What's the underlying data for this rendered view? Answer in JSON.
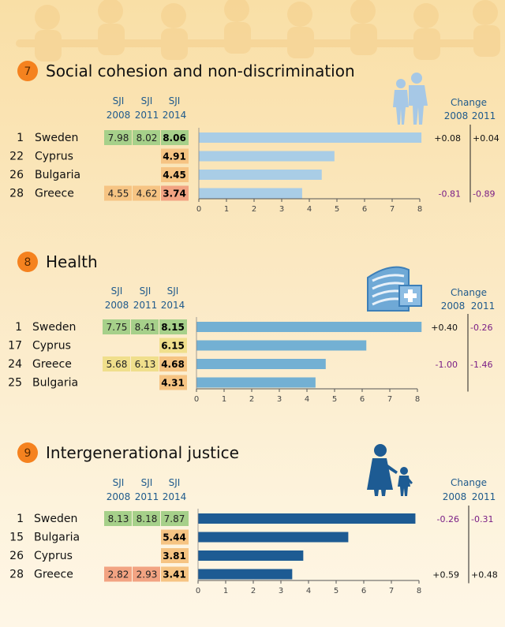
{
  "colors": {
    "tile_green": "#a6d08a",
    "tile_yellow": "#f0df8c",
    "tile_orange": "#f6c483",
    "tile_red": "#f2a382",
    "bar_light": "#a9cde6",
    "bar_medium": "#73b0d3",
    "bar_dark": "#1d5b93",
    "badge": "#f5821f",
    "change_positive": "#111111",
    "change_negative": "#7a1e86"
  },
  "sections": [
    {
      "number": "7",
      "title": "Social cohesion and non-discrimination",
      "icon": "walking-couple-icon",
      "bar_color": "#a9cde6",
      "headers": {
        "sji": "SJI",
        "years": [
          "2008",
          "2011",
          "2014"
        ],
        "change": "Change",
        "change_years": [
          "2008",
          "2011"
        ]
      },
      "rows": [
        {
          "rank": "1",
          "country": "Sweden",
          "v2008": "7.98",
          "v2011": "8.02",
          "v2014": "8.06",
          "c2008": "+0.08",
          "c2011": "+0.04",
          "tiles": [
            "green",
            "green",
            "green"
          ]
        },
        {
          "rank": "22",
          "country": "Cyprus",
          "v2008": "",
          "v2011": "",
          "v2014": "4.91",
          "c2008": "",
          "c2011": "",
          "tiles": [
            "",
            "",
            "orange"
          ]
        },
        {
          "rank": "26",
          "country": "Bulgaria",
          "v2008": "",
          "v2011": "",
          "v2014": "4.45",
          "c2008": "",
          "c2011": "",
          "tiles": [
            "",
            "",
            "orange"
          ]
        },
        {
          "rank": "28",
          "country": "Greece",
          "v2008": "4.55",
          "v2011": "4.62",
          "v2014": "3.74",
          "c2008": "-0.81",
          "c2011": "-0.89",
          "tiles": [
            "orange",
            "orange",
            "red"
          ]
        }
      ]
    },
    {
      "number": "8",
      "title": "Health",
      "icon": "hospital-icon",
      "bar_color": "#73b0d3",
      "headers": {
        "sji": "SJI",
        "years": [
          "2008",
          "2011",
          "2014"
        ],
        "change": "Change",
        "change_years": [
          "2008",
          "2011"
        ]
      },
      "rows": [
        {
          "rank": "1",
          "country": "Sweden",
          "v2008": "7.75",
          "v2011": "8.41",
          "v2014": "8.15",
          "c2008": "+0.40",
          "c2011": "-0.26",
          "tiles": [
            "green",
            "green",
            "green"
          ]
        },
        {
          "rank": "17",
          "country": "Cyprus",
          "v2008": "",
          "v2011": "",
          "v2014": "6.15",
          "c2008": "",
          "c2011": "",
          "tiles": [
            "",
            "",
            "yellow"
          ]
        },
        {
          "rank": "24",
          "country": "Greece",
          "v2008": "5.68",
          "v2011": "6.13",
          "v2014": "4.68",
          "c2008": "-1.00",
          "c2011": "-1.46",
          "tiles": [
            "yellow",
            "yellow",
            "orange"
          ]
        },
        {
          "rank": "25",
          "country": "Bulgaria",
          "v2008": "",
          "v2011": "",
          "v2014": "4.31",
          "c2008": "",
          "c2011": "",
          "tiles": [
            "",
            "",
            "orange"
          ]
        }
      ]
    },
    {
      "number": "9",
      "title": "Intergenerational justice",
      "icon": "grandparent-child-icon",
      "bar_color": "#1d5b93",
      "headers": {
        "sji": "SJI",
        "years": [
          "2008",
          "2011",
          "2014"
        ],
        "change": "Change",
        "change_years": [
          "2008",
          "2011"
        ]
      },
      "rows": [
        {
          "rank": "1",
          "country": "Sweden",
          "v2008": "8.13",
          "v2011": "8.18",
          "v2014": "7.87",
          "c2008": "-0.26",
          "c2011": "-0.31",
          "tiles": [
            "green",
            "green",
            "green"
          ]
        },
        {
          "rank": "15",
          "country": "Bulgaria",
          "v2008": "",
          "v2011": "",
          "v2014": "5.44",
          "c2008": "",
          "c2011": "",
          "tiles": [
            "",
            "",
            "orange"
          ]
        },
        {
          "rank": "26",
          "country": "Cyprus",
          "v2008": "",
          "v2011": "",
          "v2014": "3.81",
          "c2008": "",
          "c2011": "",
          "tiles": [
            "",
            "",
            "orange"
          ]
        },
        {
          "rank": "28",
          "country": "Greece",
          "v2008": "2.82",
          "v2011": "2.93",
          "v2014": "3.41",
          "c2008": "+0.59",
          "c2011": "+0.48",
          "tiles": [
            "red",
            "red",
            "orange"
          ]
        }
      ]
    }
  ],
  "chart_data": [
    {
      "type": "bar",
      "title": "Social cohesion and non-discrimination",
      "categories": [
        "Sweden",
        "Cyprus",
        "Bulgaria",
        "Greece"
      ],
      "values": [
        8.06,
        4.91,
        4.45,
        3.74
      ],
      "xlim": [
        0,
        8
      ],
      "ticks": [
        0,
        1,
        2,
        3,
        4,
        5,
        6,
        7,
        8
      ],
      "grid": false
    },
    {
      "type": "bar",
      "title": "Health",
      "categories": [
        "Sweden",
        "Cyprus",
        "Greece",
        "Bulgaria"
      ],
      "values": [
        8.15,
        6.15,
        4.68,
        4.31
      ],
      "xlim": [
        0,
        8
      ],
      "ticks": [
        0,
        1,
        2,
        3,
        4,
        5,
        6,
        7,
        8
      ],
      "grid": false
    },
    {
      "type": "bar",
      "title": "Intergenerational justice",
      "categories": [
        "Sweden",
        "Bulgaria",
        "Cyprus",
        "Greece"
      ],
      "values": [
        7.87,
        5.44,
        3.81,
        3.41
      ],
      "xlim": [
        0,
        8
      ],
      "ticks": [
        0,
        1,
        2,
        3,
        4,
        5,
        6,
        7,
        8
      ],
      "grid": false
    }
  ]
}
